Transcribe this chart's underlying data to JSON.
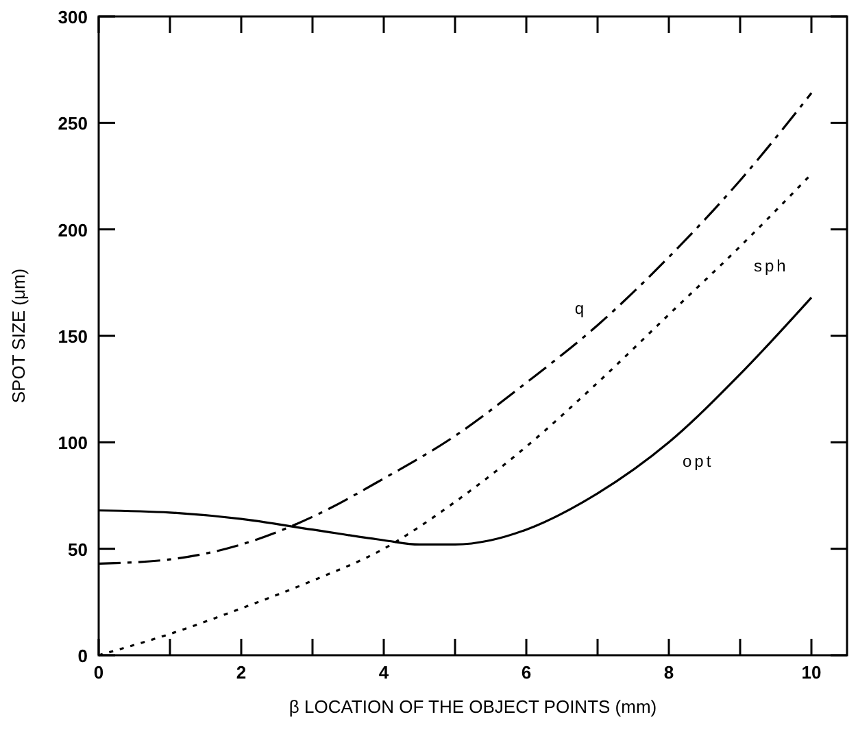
{
  "chart_data": {
    "type": "line",
    "xlabel": "β LOCATION OF THE OBJECT POINTS (mm)",
    "ylabel": "SPOT SIZE (μm)",
    "xlim": [
      0,
      10.5
    ],
    "ylim": [
      0,
      300
    ],
    "xticks": [
      0,
      {
        "value": 1,
        "label": null
      },
      2,
      {
        "value": 3,
        "label": null
      },
      4,
      {
        "value": 5,
        "label": null
      },
      6,
      {
        "value": 7,
        "label": null
      },
      8,
      {
        "value": 9,
        "label": null
      },
      10
    ],
    "yticks": [
      0,
      50,
      100,
      150,
      200,
      250,
      300
    ],
    "grid": false,
    "legend": false,
    "series": [
      {
        "name": "q",
        "color": "#000000",
        "line_style": "dashed",
        "x": [
          0,
          1,
          2,
          3,
          4,
          5,
          6,
          7,
          8,
          9,
          10
        ],
        "values": [
          43,
          45,
          52,
          65,
          83,
          103,
          128,
          155,
          187,
          223,
          264
        ]
      },
      {
        "name": "sph",
        "color": "#000000",
        "line_style": "dotted",
        "x": [
          0,
          1,
          2,
          3,
          4,
          5,
          6,
          7,
          8,
          9,
          10
        ],
        "values": [
          0,
          10,
          22,
          35,
          50,
          72,
          98,
          128,
          160,
          192,
          226
        ]
      },
      {
        "name": "opt",
        "color": "#000000",
        "line_style": "solid",
        "x": [
          0,
          1,
          2,
          3,
          4,
          4.5,
          5,
          5.5,
          6,
          7,
          8,
          9,
          10
        ],
        "values": [
          68,
          67,
          64,
          59,
          54,
          52,
          52,
          54,
          59,
          76,
          100,
          132,
          168
        ]
      }
    ]
  }
}
